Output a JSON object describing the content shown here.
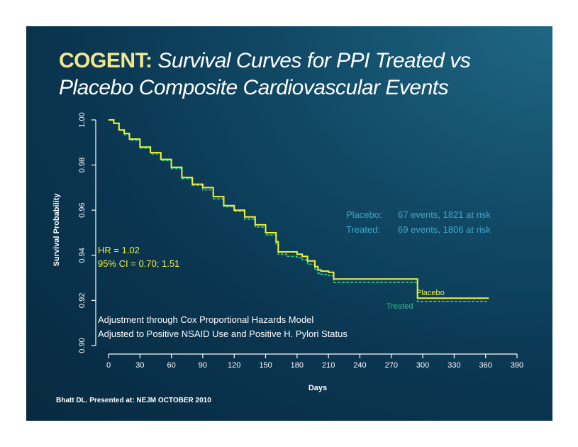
{
  "slide": {
    "title_strong": "COGENT:",
    "title_italic_line1": "Survival Curves for PPI Treated vs",
    "title_italic_line2": "Placebo Composite Cardiovascular Events",
    "source": "Bhatt DL. Presented at: NEJM OCTOBER 2010"
  },
  "colors": {
    "placebo": "#f2f230",
    "treated": "#2fbf8a",
    "legend_text": "#3fa7c9",
    "annotation": "#f2f230",
    "axis": "#ffffff"
  },
  "chart_data": {
    "type": "line",
    "xlabel": "Days",
    "ylabel": "Survival Probability",
    "xlim": [
      0,
      390
    ],
    "ylim": [
      0.9,
      1.0
    ],
    "xticks": [
      0,
      30,
      60,
      90,
      120,
      150,
      180,
      210,
      240,
      270,
      300,
      330,
      360,
      390
    ],
    "yticks": [
      "0.90",
      "0.92",
      "0.94",
      "0.96",
      "0.98",
      "1.00"
    ],
    "series": [
      {
        "name": "Placebo",
        "x": [
          0,
          5,
          10,
          15,
          20,
          30,
          40,
          50,
          60,
          70,
          80,
          90,
          100,
          110,
          120,
          130,
          140,
          150,
          160,
          162,
          170,
          180,
          185,
          190,
          197,
          200,
          203,
          210,
          215,
          220,
          240,
          270,
          292,
          295,
          330,
          363
        ],
        "y": [
          1.0,
          0.9985,
          0.9955,
          0.994,
          0.9915,
          0.988,
          0.9855,
          0.9825,
          0.979,
          0.9745,
          0.9715,
          0.97,
          0.966,
          0.962,
          0.96,
          0.957,
          0.9535,
          0.95,
          0.946,
          0.9415,
          0.9415,
          0.9405,
          0.9395,
          0.9375,
          0.935,
          0.9335,
          0.933,
          0.9325,
          0.9295,
          0.9295,
          0.9295,
          0.9295,
          0.9295,
          0.921,
          0.921,
          0.921
        ]
      },
      {
        "name": "Treated",
        "x": [
          0,
          5,
          10,
          15,
          20,
          30,
          40,
          50,
          60,
          70,
          80,
          90,
          100,
          110,
          120,
          130,
          140,
          150,
          160,
          162,
          170,
          180,
          185,
          190,
          197,
          200,
          203,
          210,
          215,
          220,
          240,
          270,
          292,
          295,
          330,
          363
        ],
        "y": [
          1.0,
          0.9985,
          0.9955,
          0.9935,
          0.991,
          0.9875,
          0.985,
          0.982,
          0.9785,
          0.974,
          0.971,
          0.969,
          0.965,
          0.9615,
          0.9595,
          0.956,
          0.9525,
          0.949,
          0.945,
          0.9405,
          0.9395,
          0.939,
          0.938,
          0.936,
          0.9335,
          0.932,
          0.9315,
          0.931,
          0.928,
          0.928,
          0.928,
          0.928,
          0.928,
          0.9195,
          0.9195,
          0.9195
        ]
      }
    ],
    "legend": {
      "placebo_label": "Placebo:",
      "placebo_value": "67 events, 1821 at risk",
      "treated_label": "Treated:",
      "treated_value": "69 events, 1806 at risk"
    },
    "annotations": {
      "hr": "HR = 1.02",
      "ci": "95% CI = 0.70; 1.51",
      "adjust1": "Adjustment through Cox Proportional Hazards Model",
      "adjust2": "Adjusted to Positive NSAID Use and  Positive H. Pylori Status",
      "placebo_curve_label": "Placebo",
      "treated_curve_label": "Treated"
    }
  }
}
